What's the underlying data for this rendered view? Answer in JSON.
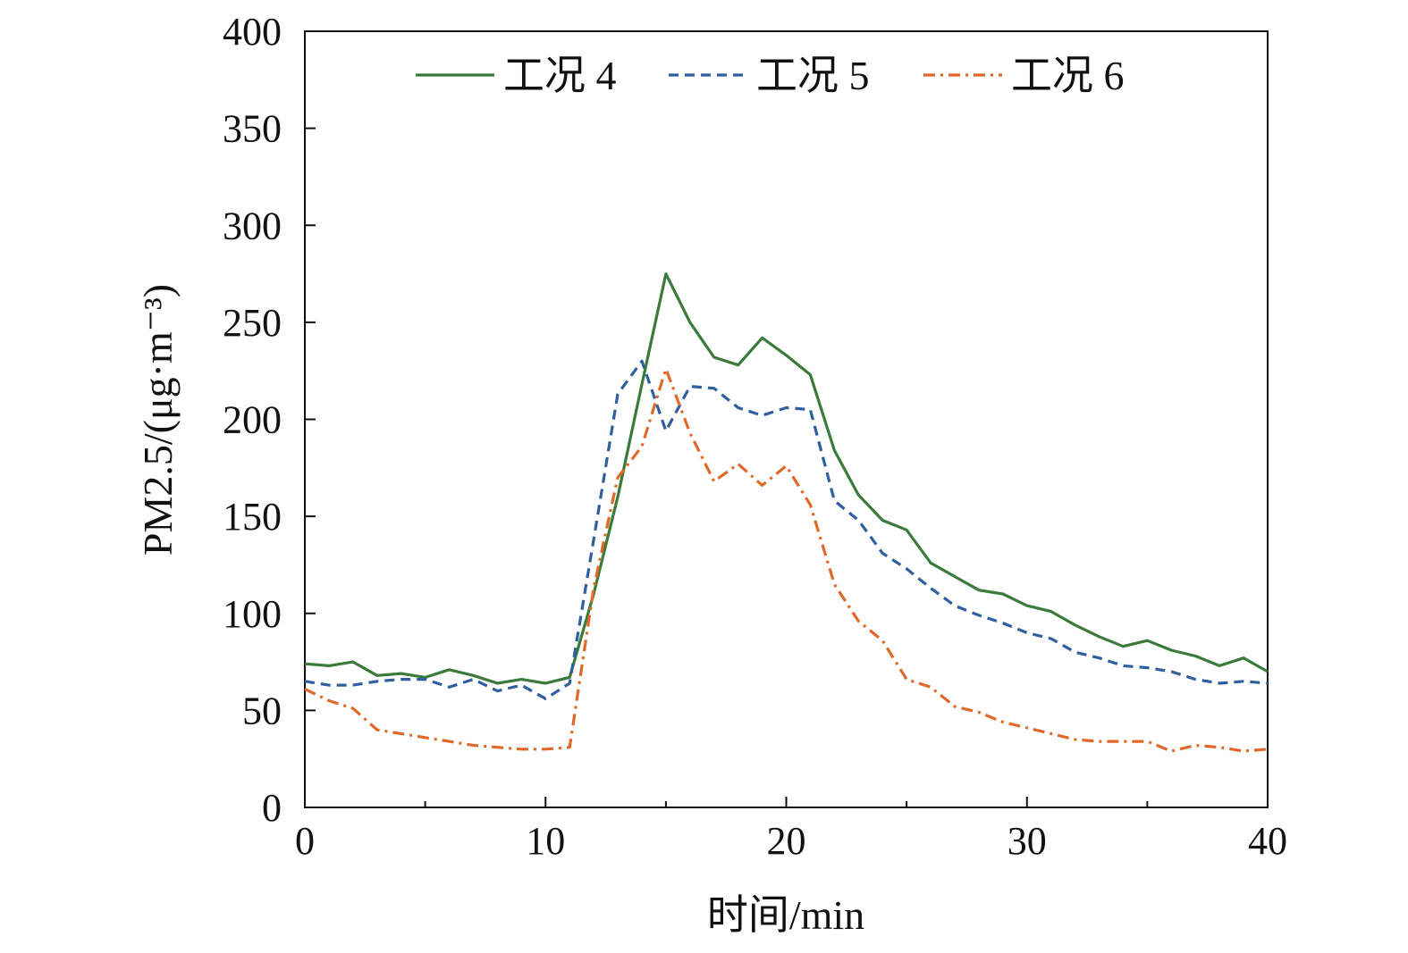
{
  "chart_data": {
    "type": "line",
    "title": "",
    "xlabel": "时间/min",
    "ylabel": "PM2.5/(μg·m⁻³)",
    "xlim": [
      0,
      40
    ],
    "ylim": [
      0,
      400
    ],
    "x_ticks": [
      0,
      10,
      20,
      30,
      40
    ],
    "y_ticks": [
      0,
      50,
      100,
      150,
      200,
      250,
      300,
      350,
      400
    ],
    "grid": false,
    "legend_position": "top",
    "x": [
      0,
      1,
      2,
      3,
      4,
      5,
      6,
      7,
      8,
      9,
      10,
      11,
      12,
      13,
      14,
      15,
      16,
      17,
      18,
      19,
      20,
      21,
      22,
      23,
      24,
      25,
      26,
      27,
      28,
      29,
      30,
      31,
      32,
      33,
      34,
      35,
      36,
      37,
      38,
      39,
      40
    ],
    "series": [
      {
        "name": "工况 4",
        "color": "#3a7a3a",
        "dash": "solid",
        "values": [
          74,
          73,
          75,
          68,
          69,
          67,
          71,
          68,
          64,
          66,
          64,
          67,
          110,
          160,
          218,
          275,
          250,
          232,
          228,
          242,
          233,
          223,
          184,
          161,
          148,
          143,
          126,
          119,
          112,
          110,
          104,
          101,
          94,
          88,
          83,
          86,
          81,
          78,
          73,
          77,
          70
        ]
      },
      {
        "name": "工况 5",
        "color": "#2f5f9e",
        "dash": "dashed",
        "values": [
          65,
          63,
          63,
          65,
          66,
          66,
          62,
          66,
          60,
          63,
          56,
          64,
          138,
          213,
          230,
          194,
          217,
          216,
          206,
          202,
          206,
          205,
          158,
          148,
          131,
          123,
          113,
          104,
          99,
          95,
          90,
          87,
          80,
          77,
          73,
          72,
          70,
          66,
          64,
          65,
          64
        ]
      },
      {
        "name": "工况 6",
        "color": "#e0692a",
        "dash": "dashdot",
        "values": [
          61,
          55,
          51,
          40,
          38,
          36,
          34,
          32,
          31,
          30,
          30,
          31,
          113,
          170,
          186,
          226,
          193,
          168,
          177,
          166,
          176,
          156,
          115,
          96,
          86,
          66,
          62,
          52,
          49,
          44,
          41,
          38,
          35,
          34,
          34,
          34,
          29,
          32,
          31,
          29,
          30
        ]
      }
    ]
  }
}
